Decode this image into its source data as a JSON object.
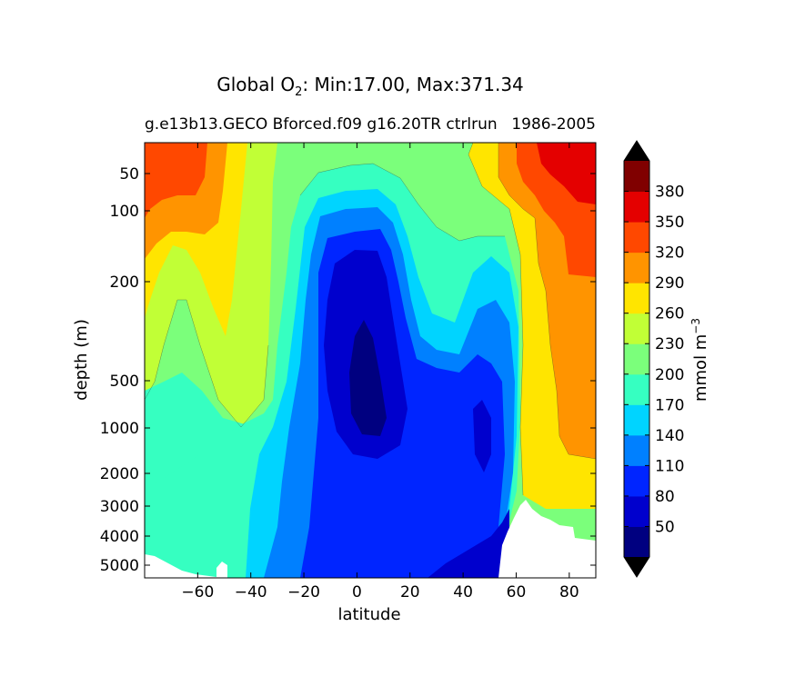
{
  "title": {
    "prefix": "Global O",
    "subscript": "2",
    "suffix": ": Min:17.00, Max:371.34"
  },
  "subtitle_left": "g.e13b13.GECO Bforced.f09 g16.20TR ctrlrun",
  "subtitle_right": "1986-2005",
  "chart_data": {
    "type": "heatmap",
    "subtype": "filled-contour",
    "xlabel": "latitude",
    "ylabel": "depth (m)",
    "xlim": [
      -80,
      90
    ],
    "x_ticks": [
      -60,
      -40,
      -20,
      0,
      20,
      40,
      60,
      80
    ],
    "x_tick_labels": [
      "−60",
      "−40",
      "−20",
      "0",
      "20",
      "40",
      "60",
      "80"
    ],
    "y_ticks": [
      {
        "label": "50"
      },
      {
        "label": "100"
      },
      {
        "label": "200"
      },
      {
        "label": "500"
      },
      {
        "label": "1000"
      },
      {
        "label": "2000"
      },
      {
        "label": "3000"
      },
      {
        "label": "4000"
      },
      {
        "label": "5000"
      }
    ],
    "y_axis_inverted": true,
    "colorbar": {
      "label": "mmol m",
      "label_exponent": "−3",
      "extend": "both",
      "levels": [
        20,
        50,
        80,
        110,
        140,
        170,
        200,
        230,
        260,
        290,
        320,
        350,
        380,
        410
      ],
      "tick_labels": [
        "50",
        "80",
        "110",
        "140",
        "170",
        "200",
        "230",
        "260",
        "290",
        "320",
        "350",
        "380"
      ],
      "colors": [
        "#000080",
        "#0000cd",
        "#0025ff",
        "#0080ff",
        "#00d4ff",
        "#36ffc1",
        "#7bff7b",
        "#c1ff36",
        "#ffe500",
        "#ff9400",
        "#ff4800",
        "#e40000",
        "#800000"
      ],
      "under_color": "#000080",
      "over_color": "#800000",
      "tri_color": "#000000"
    },
    "summary": {
      "min": 17.0,
      "max": 371.34
    }
  }
}
